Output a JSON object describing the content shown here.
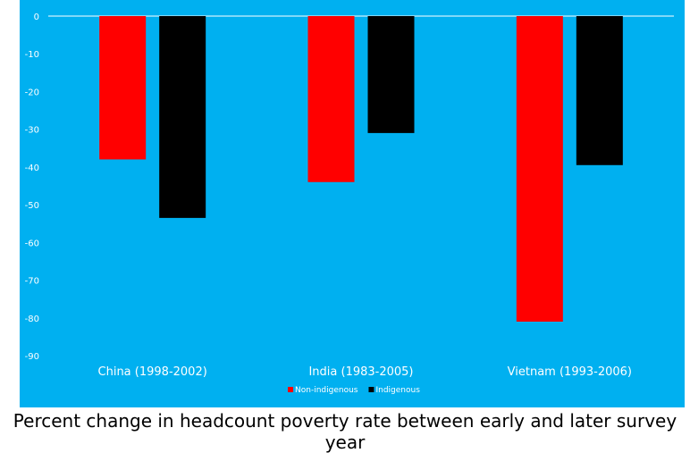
{
  "caption": "Percent change in headcount poverty rate between early and later survey year",
  "colors": {
    "background": "#00B0F0",
    "gridline": "#ffffff",
    "text": "#ffffff"
  },
  "chart_data": {
    "type": "bar",
    "title": "",
    "xlabel": "",
    "ylabel": "",
    "categories": [
      "China (1998-2002)",
      "India (1983-2005)",
      "Vietnam (1993-2006)"
    ],
    "series": [
      {
        "name": "Non-indigenous",
        "color": "#FF0000",
        "values": [
          -38,
          -44,
          -81
        ]
      },
      {
        "name": "Indigenous",
        "color": "#000000",
        "values": [
          -53.5,
          -31,
          -39.5
        ]
      }
    ],
    "ylim": [
      -90,
      0
    ],
    "yticks": [
      0,
      -10,
      -20,
      -30,
      -40,
      -50,
      -60,
      -70,
      -80,
      -90
    ],
    "grid": false,
    "legend_position": "bottom"
  }
}
